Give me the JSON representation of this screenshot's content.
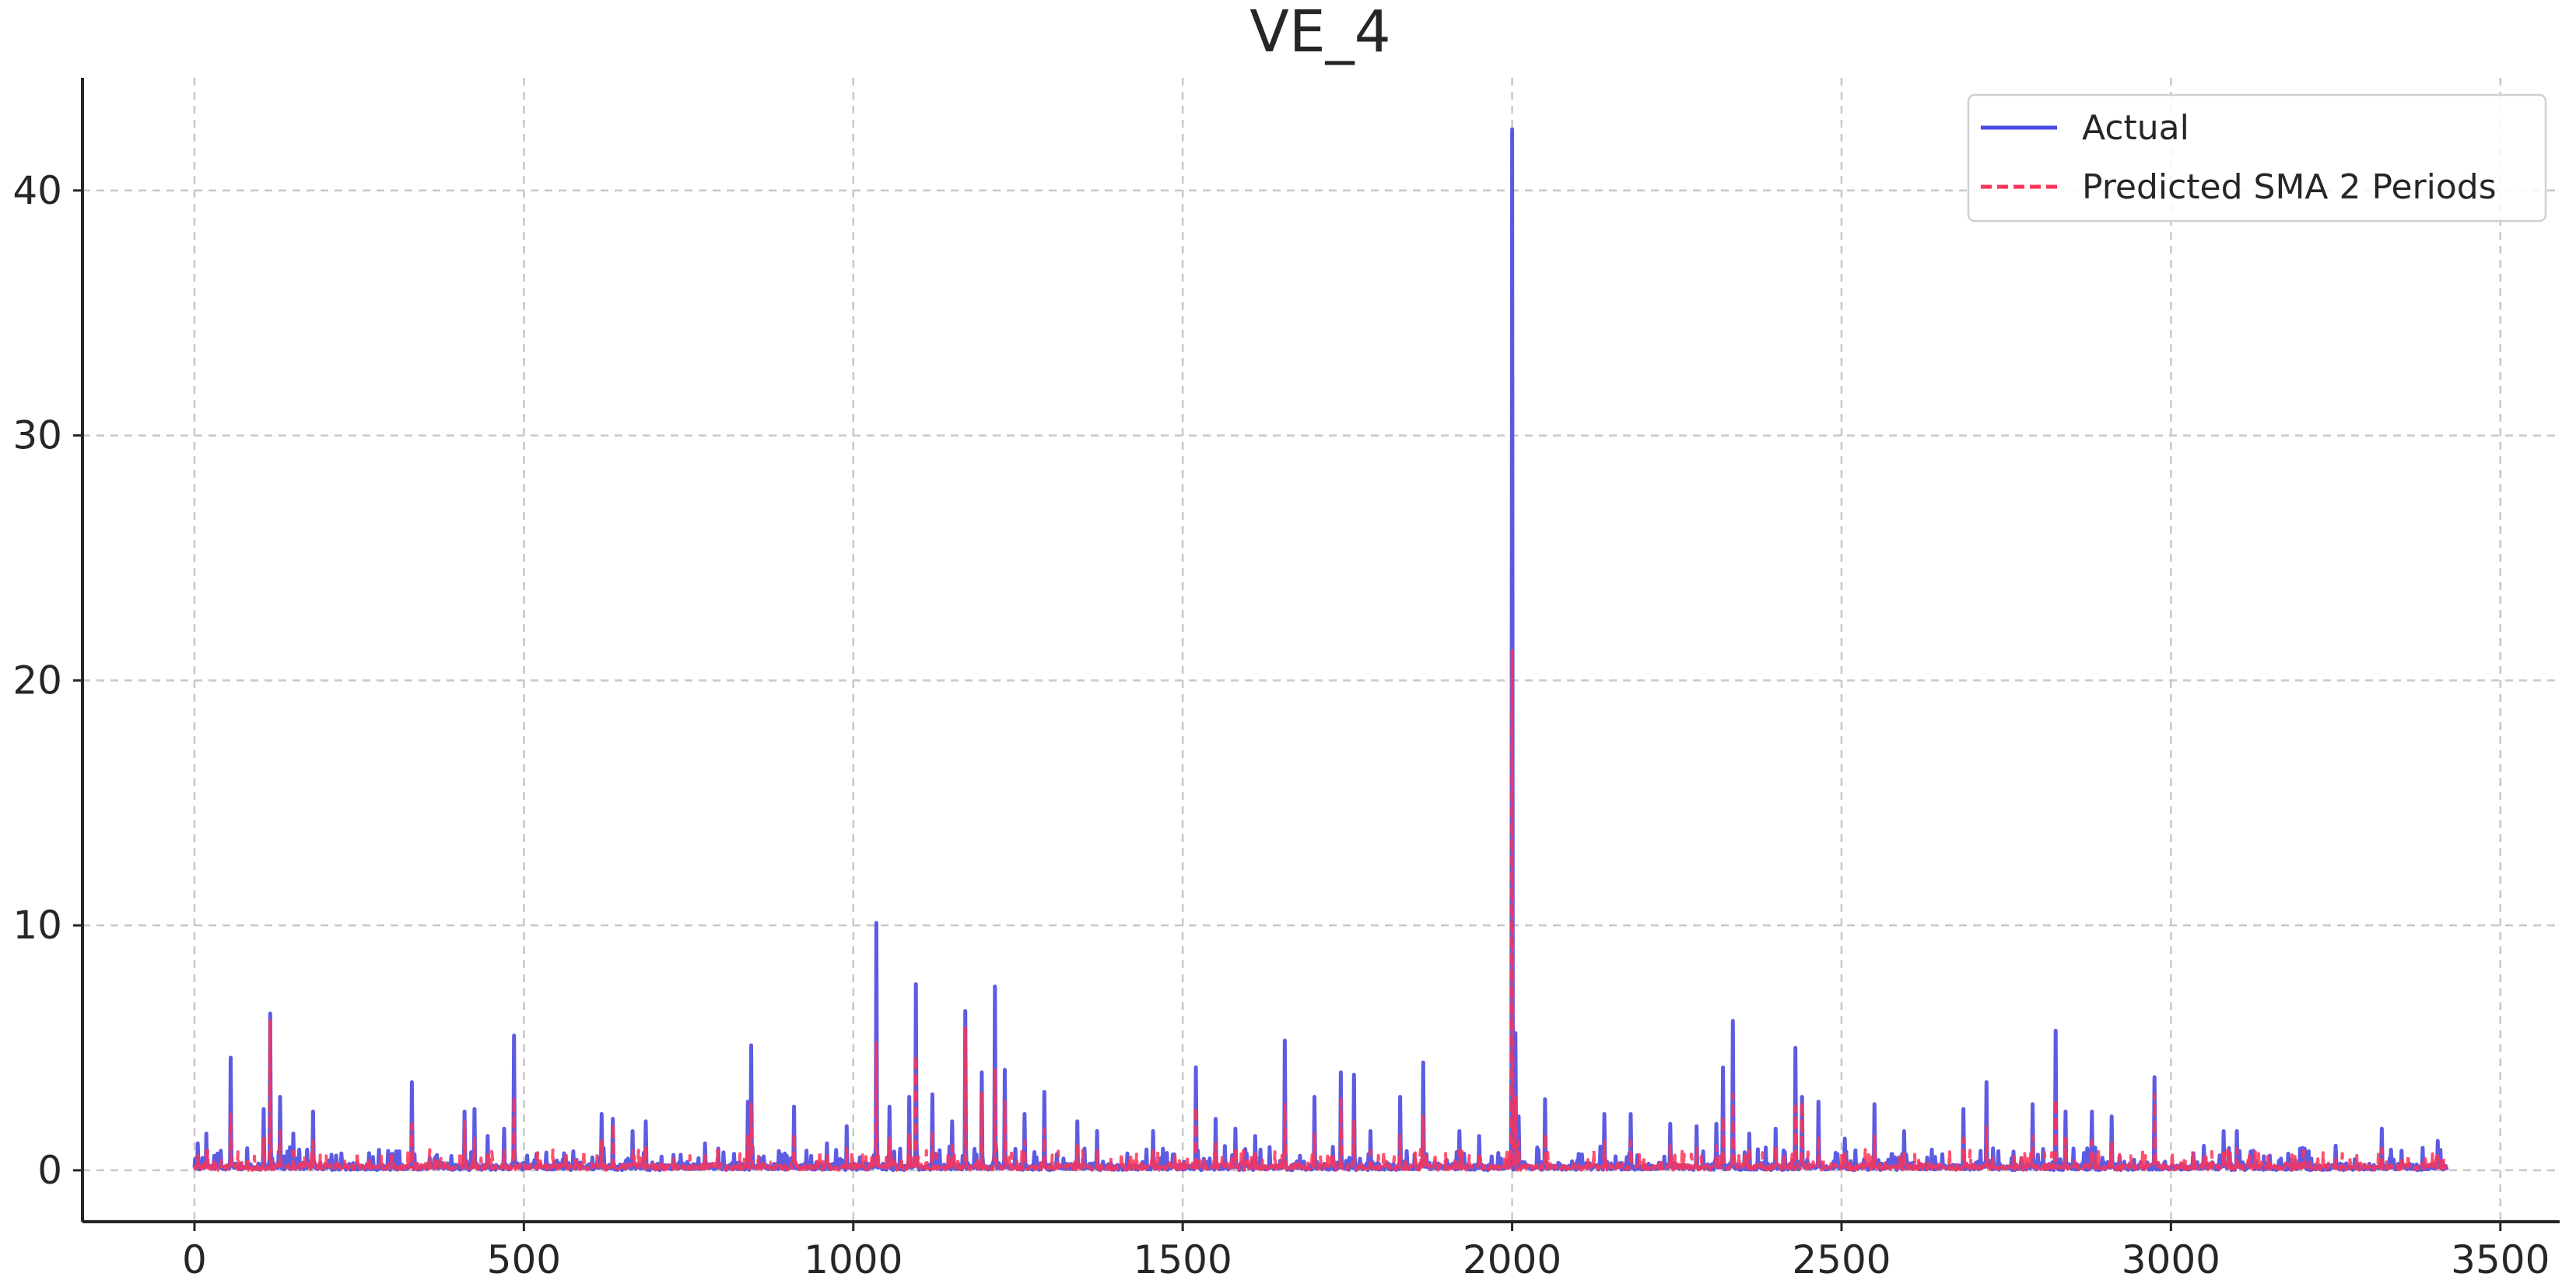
{
  "chart_data": {
    "type": "line",
    "title": "VE_4",
    "xlabel": "",
    "ylabel": "",
    "xlim": [
      -170,
      3590
    ],
    "ylim": [
      -2.1,
      44.6
    ],
    "xticks": [
      0,
      500,
      1000,
      1500,
      2000,
      2500,
      3000,
      3500
    ],
    "yticks": [
      0,
      10,
      20,
      30,
      40
    ],
    "grid": true,
    "legend_position": "top-right",
    "n_points": 3420,
    "series": [
      {
        "name": "Actual",
        "color": "#4a4ae0",
        "style": "solid",
        "baseline": 0.12,
        "noise": 0.3,
        "spikes": [
          [
            5,
            1.1
          ],
          [
            18,
            1.5
          ],
          [
            40,
            0.8
          ],
          [
            55,
            4.6
          ],
          [
            80,
            0.9
          ],
          [
            105,
            2.5
          ],
          [
            115,
            6.4
          ],
          [
            130,
            3.0
          ],
          [
            150,
            1.5
          ],
          [
            180,
            2.4
          ],
          [
            215,
            0.6
          ],
          [
            265,
            0.7
          ],
          [
            330,
            3.6
          ],
          [
            410,
            2.4
          ],
          [
            425,
            2.5
          ],
          [
            445,
            1.4
          ],
          [
            470,
            1.7
          ],
          [
            485,
            5.5
          ],
          [
            505,
            0.6
          ],
          [
            550,
            0.4
          ],
          [
            618,
            2.3
          ],
          [
            635,
            2.1
          ],
          [
            665,
            1.6
          ],
          [
            685,
            2.0
          ],
          [
            775,
            1.1
          ],
          [
            840,
            2.8
          ],
          [
            845,
            5.1
          ],
          [
            910,
            2.6
          ],
          [
            960,
            1.1
          ],
          [
            990,
            1.8
          ],
          [
            1035,
            10.1
          ],
          [
            1055,
            2.6
          ],
          [
            1085,
            3.0
          ],
          [
            1095,
            7.6
          ],
          [
            1120,
            3.1
          ],
          [
            1150,
            2.0
          ],
          [
            1170,
            6.5
          ],
          [
            1195,
            4.0
          ],
          [
            1215,
            7.5
          ],
          [
            1230,
            4.1
          ],
          [
            1260,
            2.3
          ],
          [
            1290,
            3.2
          ],
          [
            1340,
            2.0
          ],
          [
            1370,
            1.6
          ],
          [
            1455,
            1.6
          ],
          [
            1520,
            4.2
          ],
          [
            1550,
            2.1
          ],
          [
            1580,
            1.7
          ],
          [
            1610,
            1.4
          ],
          [
            1655,
            5.3
          ],
          [
            1700,
            3.0
          ],
          [
            1740,
            4.0
          ],
          [
            1760,
            3.9
          ],
          [
            1785,
            1.6
          ],
          [
            1830,
            3.0
          ],
          [
            1865,
            4.4
          ],
          [
            1920,
            1.6
          ],
          [
            1950,
            1.4
          ],
          [
            2000,
            42.5
          ],
          [
            2005,
            5.6
          ],
          [
            2010,
            2.2
          ],
          [
            2050,
            2.9
          ],
          [
            2140,
            2.3
          ],
          [
            2180,
            2.3
          ],
          [
            2240,
            1.9
          ],
          [
            2280,
            1.8
          ],
          [
            2310,
            1.9
          ],
          [
            2320,
            4.2
          ],
          [
            2335,
            6.1
          ],
          [
            2360,
            1.5
          ],
          [
            2400,
            1.7
          ],
          [
            2430,
            5.0
          ],
          [
            2440,
            3.0
          ],
          [
            2465,
            2.8
          ],
          [
            2505,
            1.3
          ],
          [
            2550,
            2.7
          ],
          [
            2595,
            1.6
          ],
          [
            2685,
            2.5
          ],
          [
            2720,
            3.6
          ],
          [
            2790,
            2.7
          ],
          [
            2825,
            5.7
          ],
          [
            2840,
            2.4
          ],
          [
            2880,
            2.4
          ],
          [
            2910,
            2.2
          ],
          [
            2975,
            3.8
          ],
          [
            3050,
            1.0
          ],
          [
            3080,
            1.6
          ],
          [
            3100,
            1.6
          ],
          [
            3150,
            0.6
          ],
          [
            3250,
            1.0
          ],
          [
            3320,
            1.7
          ],
          [
            3350,
            0.8
          ],
          [
            3405,
            1.2
          ]
        ]
      },
      {
        "name": "Predicted SMA 2 Periods",
        "color": "#ff3355",
        "style": "dashed",
        "baseline": 0.12,
        "noise": 0.25,
        "spikes": [
          [
            5,
            0.6
          ],
          [
            18,
            0.8
          ],
          [
            40,
            0.4
          ],
          [
            55,
            2.3
          ],
          [
            80,
            0.5
          ],
          [
            105,
            1.3
          ],
          [
            115,
            6.1
          ],
          [
            130,
            1.6
          ],
          [
            150,
            0.8
          ],
          [
            180,
            1.2
          ],
          [
            215,
            0.3
          ],
          [
            265,
            0.4
          ],
          [
            330,
            1.9
          ],
          [
            410,
            2.0
          ],
          [
            425,
            1.3
          ],
          [
            445,
            0.7
          ],
          [
            470,
            0.9
          ],
          [
            485,
            3.0
          ],
          [
            505,
            0.3
          ],
          [
            550,
            0.2
          ],
          [
            618,
            1.2
          ],
          [
            635,
            1.9
          ],
          [
            665,
            0.8
          ],
          [
            685,
            1.0
          ],
          [
            775,
            0.6
          ],
          [
            840,
            1.4
          ],
          [
            845,
            2.7
          ],
          [
            910,
            1.5
          ],
          [
            960,
            0.6
          ],
          [
            990,
            0.9
          ],
          [
            1035,
            5.2
          ],
          [
            1055,
            1.3
          ],
          [
            1085,
            1.5
          ],
          [
            1095,
            4.7
          ],
          [
            1120,
            1.6
          ],
          [
            1150,
            1.0
          ],
          [
            1170,
            5.8
          ],
          [
            1195,
            3.2
          ],
          [
            1215,
            4.1
          ],
          [
            1230,
            2.8
          ],
          [
            1260,
            1.2
          ],
          [
            1290,
            1.7
          ],
          [
            1340,
            1.0
          ],
          [
            1370,
            0.8
          ],
          [
            1455,
            0.8
          ],
          [
            1520,
            2.6
          ],
          [
            1550,
            1.1
          ],
          [
            1580,
            0.9
          ],
          [
            1610,
            0.7
          ],
          [
            1655,
            2.7
          ],
          [
            1700,
            1.5
          ],
          [
            1740,
            2.9
          ],
          [
            1760,
            2.0
          ],
          [
            1785,
            0.8
          ],
          [
            1830,
            1.5
          ],
          [
            1865,
            2.2
          ],
          [
            1920,
            0.8
          ],
          [
            1950,
            0.7
          ],
          [
            2000,
            21.2
          ],
          [
            2005,
            3.0
          ],
          [
            2010,
            1.2
          ],
          [
            2050,
            1.5
          ],
          [
            2140,
            1.2
          ],
          [
            2180,
            1.2
          ],
          [
            2240,
            1.0
          ],
          [
            2280,
            0.9
          ],
          [
            2310,
            1.0
          ],
          [
            2320,
            2.2
          ],
          [
            2335,
            3.1
          ],
          [
            2360,
            0.8
          ],
          [
            2400,
            0.9
          ],
          [
            2430,
            2.6
          ],
          [
            2440,
            2.8
          ],
          [
            2465,
            1.4
          ],
          [
            2505,
            0.7
          ],
          [
            2550,
            1.4
          ],
          [
            2595,
            0.8
          ],
          [
            2685,
            1.3
          ],
          [
            2720,
            1.8
          ],
          [
            2790,
            1.4
          ],
          [
            2825,
            2.9
          ],
          [
            2840,
            1.3
          ],
          [
            2880,
            1.2
          ],
          [
            2910,
            1.1
          ],
          [
            2975,
            3.1
          ],
          [
            3050,
            0.5
          ],
          [
            3080,
            0.8
          ],
          [
            3100,
            0.9
          ],
          [
            3150,
            0.3
          ],
          [
            3250,
            0.5
          ],
          [
            3320,
            0.9
          ],
          [
            3350,
            0.4
          ],
          [
            3405,
            0.6
          ]
        ]
      }
    ]
  }
}
